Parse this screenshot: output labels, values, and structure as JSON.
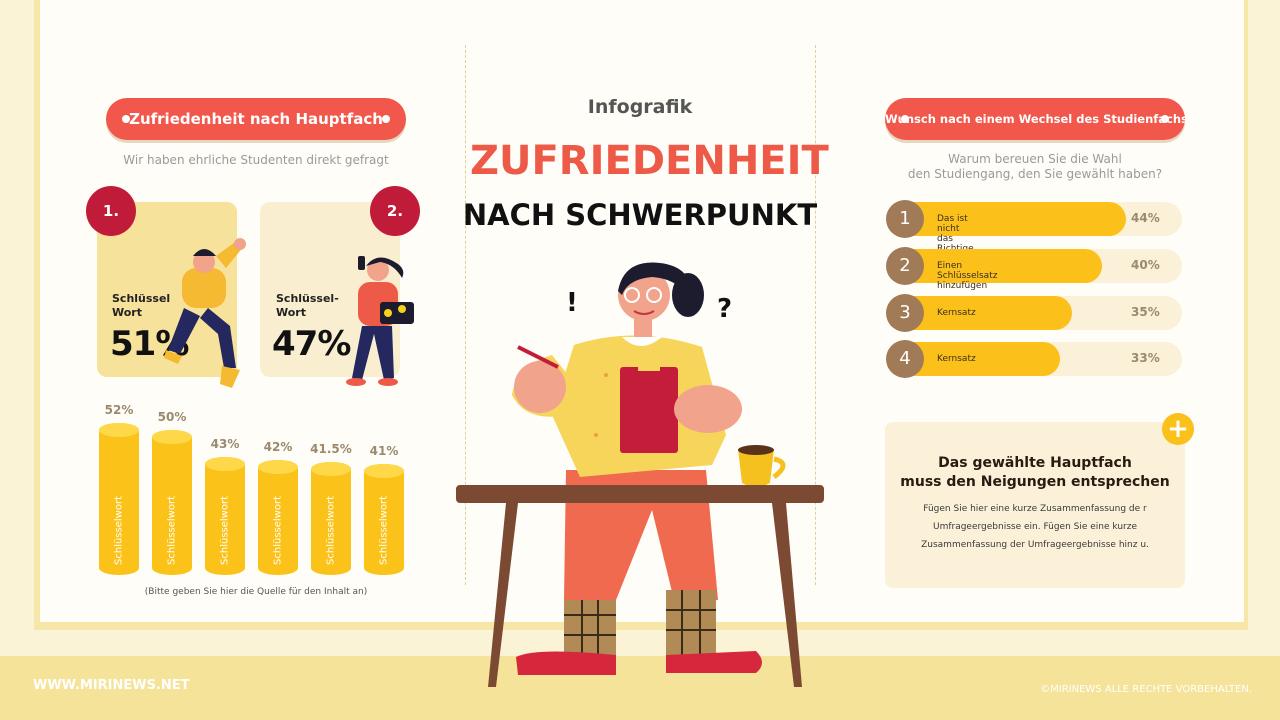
{
  "center": {
    "kicker": "Infografik",
    "title": "ZUFRIEDENHEIT",
    "subtitle": "NACH SCHWERPUNKT"
  },
  "left": {
    "pill": "Zufriedenheit nach Hauptfach",
    "subtitle": "Wir haben ehrliche Studenten direkt gefragt",
    "cards": [
      {
        "badge": "1.",
        "keyword_line1": "Schlüssel",
        "keyword_line2": "Wort",
        "percent": "51%"
      },
      {
        "badge": "2.",
        "keyword_line1": "Schlüssel-",
        "keyword_line2": "Wort",
        "percent": "47%"
      }
    ],
    "source_note": "(Bitte geben Sie hier die Quelle für den Inhalt an)"
  },
  "chart_data": {
    "type": "bar",
    "categories": [
      "Schlüsselwort",
      "Schlüsselwort",
      "Schlüsselwort",
      "Schlüsselwort",
      "Schlüsselwort",
      "Schlüsselwort"
    ],
    "values": [
      52,
      50,
      43,
      42,
      41.5,
      41
    ],
    "value_labels": [
      "52%",
      "50%",
      "43%",
      "42%",
      "41.5%",
      "41%"
    ]
  },
  "right": {
    "pill": "Wunsch nach einem Wechsel des Studienfachs",
    "question_line1": "Warum bereuen Sie die Wahl",
    "question_line2": "den Studiengang, den Sie gewählt haben?",
    "ranks": [
      {
        "num": "1",
        "label": "Das ist nicht das Richtige für mich",
        "percent": "44%",
        "value": 44
      },
      {
        "num": "2",
        "label": "Einen Schlüsselsatz hinzufügen",
        "percent": "40%",
        "value": 40
      },
      {
        "num": "3",
        "label": "Kernsatz",
        "percent": "35%",
        "value": 35
      },
      {
        "num": "4",
        "label": "Kernsatz",
        "percent": "33%",
        "value": 33
      }
    ],
    "note": {
      "plus": "+",
      "title_line1": "Das gewählte Hauptfach",
      "title_line2": "muss den Neigungen entsprechen",
      "body": "Fügen Sie hier eine kurze Zusammenfassung de r Umfrageergebnisse ein. Fügen Sie eine kurze Zusammenfassung der Umfrageergebnisse hinz u."
    }
  },
  "illustration": {
    "exclaim": "!",
    "question": "?"
  },
  "footer": {
    "site": "WWW.MIRINEWS.NET",
    "copyright": "©MIRINEWS ALLE RECHTE VORBEHALTEN."
  },
  "colors": {
    "accent_red": "#f2574b",
    "badge_red": "#c01c3a",
    "yellow": "#fbc31a",
    "rank_brown": "#a17a57"
  }
}
